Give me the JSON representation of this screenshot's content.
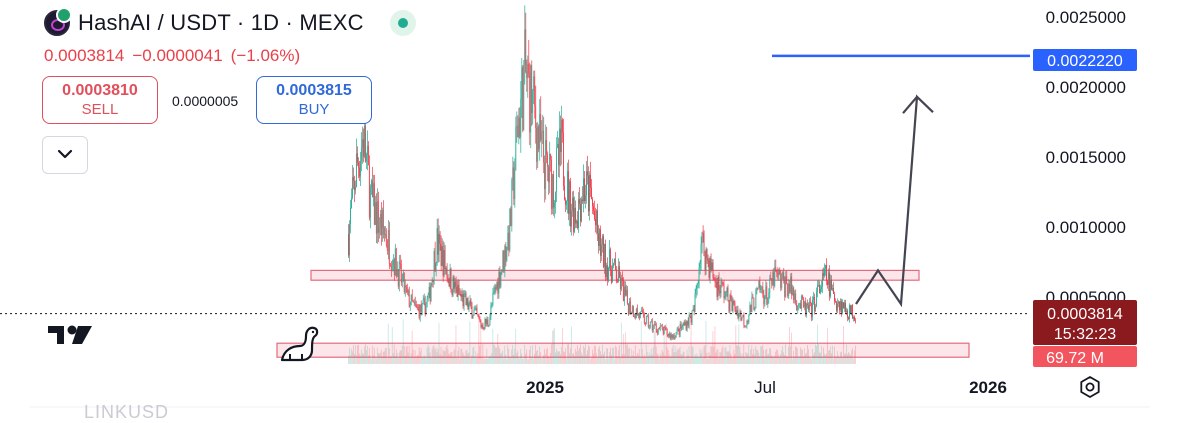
{
  "header": {
    "title": "HashAI / USDT · 1D · MEXC",
    "last_price": "0.0003814",
    "change": "−0.0000041",
    "change_pct": "(−1.06%)"
  },
  "trade": {
    "sell_price": "0.0003810",
    "sell_label": "SELL",
    "spread": "0.0000005",
    "buy_price": "0.0003815",
    "buy_label": "BUY"
  },
  "price_axis": {
    "ticks": [
      "0.0025000",
      "0.0020000",
      "0.0015000",
      "0.0010000",
      "0.0005000"
    ],
    "target_label": "0.0022220",
    "current_label": "0.0003814",
    "countdown": "15:32:23",
    "volume_label": "69.72 M"
  },
  "time_axis": {
    "ticks": [
      "2025",
      "Jul",
      "2026"
    ]
  },
  "watermark": "LINKUSD",
  "colors": {
    "up": "#22ab94",
    "down": "#f23645",
    "target": "#2962ff",
    "zone_fill": "#fbd5dc",
    "zone_stroke": "#e36b7f",
    "drawing": "#434651",
    "current_bg": "#8b1a1f",
    "volume_bg": "#f2555e"
  },
  "icons": [
    "hashai-logo-icon",
    "live-status-icon",
    "chevron-down-icon",
    "tradingview-logo-icon",
    "mascot-icon",
    "settings-icon"
  ],
  "chart_data": {
    "type": "candlestick",
    "y_scale": "linear",
    "ylim": [
      0,
      0.0026
    ],
    "time_ticks": [
      "2025",
      "Jul",
      "2026"
    ],
    "close_series": [
      0.00095,
      0.0014,
      0.00165,
      0.0012,
      0.00105,
      0.00095,
      0.0008,
      0.00065,
      0.0005,
      0.00042,
      0.0004,
      0.0005,
      0.0009,
      0.00075,
      0.0006,
      0.00052,
      0.00045,
      0.0004,
      0.0003,
      0.00032,
      0.00055,
      0.00075,
      0.001,
      0.0017,
      0.0021,
      0.0019,
      0.0016,
      0.0014,
      0.0013,
      0.00155,
      0.0012,
      0.0011,
      0.0013,
      0.0012,
      0.0009,
      0.00075,
      0.0007,
      0.0006,
      0.00045,
      0.0004,
      0.00035,
      0.0003,
      0.00028,
      0.00025,
      0.00022,
      0.00026,
      0.00032,
      0.00038,
      0.0009,
      0.00075,
      0.0006,
      0.00055,
      0.00045,
      0.0004,
      0.00032,
      0.00045,
      0.00055,
      0.0005,
      0.00065,
      0.0006,
      0.00058,
      0.00048,
      0.00042,
      0.0004,
      0.00055,
      0.00065,
      0.0005,
      0.00045,
      0.0004,
      0.00038
    ],
    "horizontal_zones": [
      {
        "top": 0.00069,
        "bottom": 0.00062
      },
      {
        "top": 0.00017,
        "bottom": 7e-05
      }
    ],
    "target_line": 0.002222,
    "current_price": 0.0003814,
    "projection_path": [
      0.00045,
      0.00069,
      0.00045,
      0.00193,
      0.00182
    ]
  }
}
